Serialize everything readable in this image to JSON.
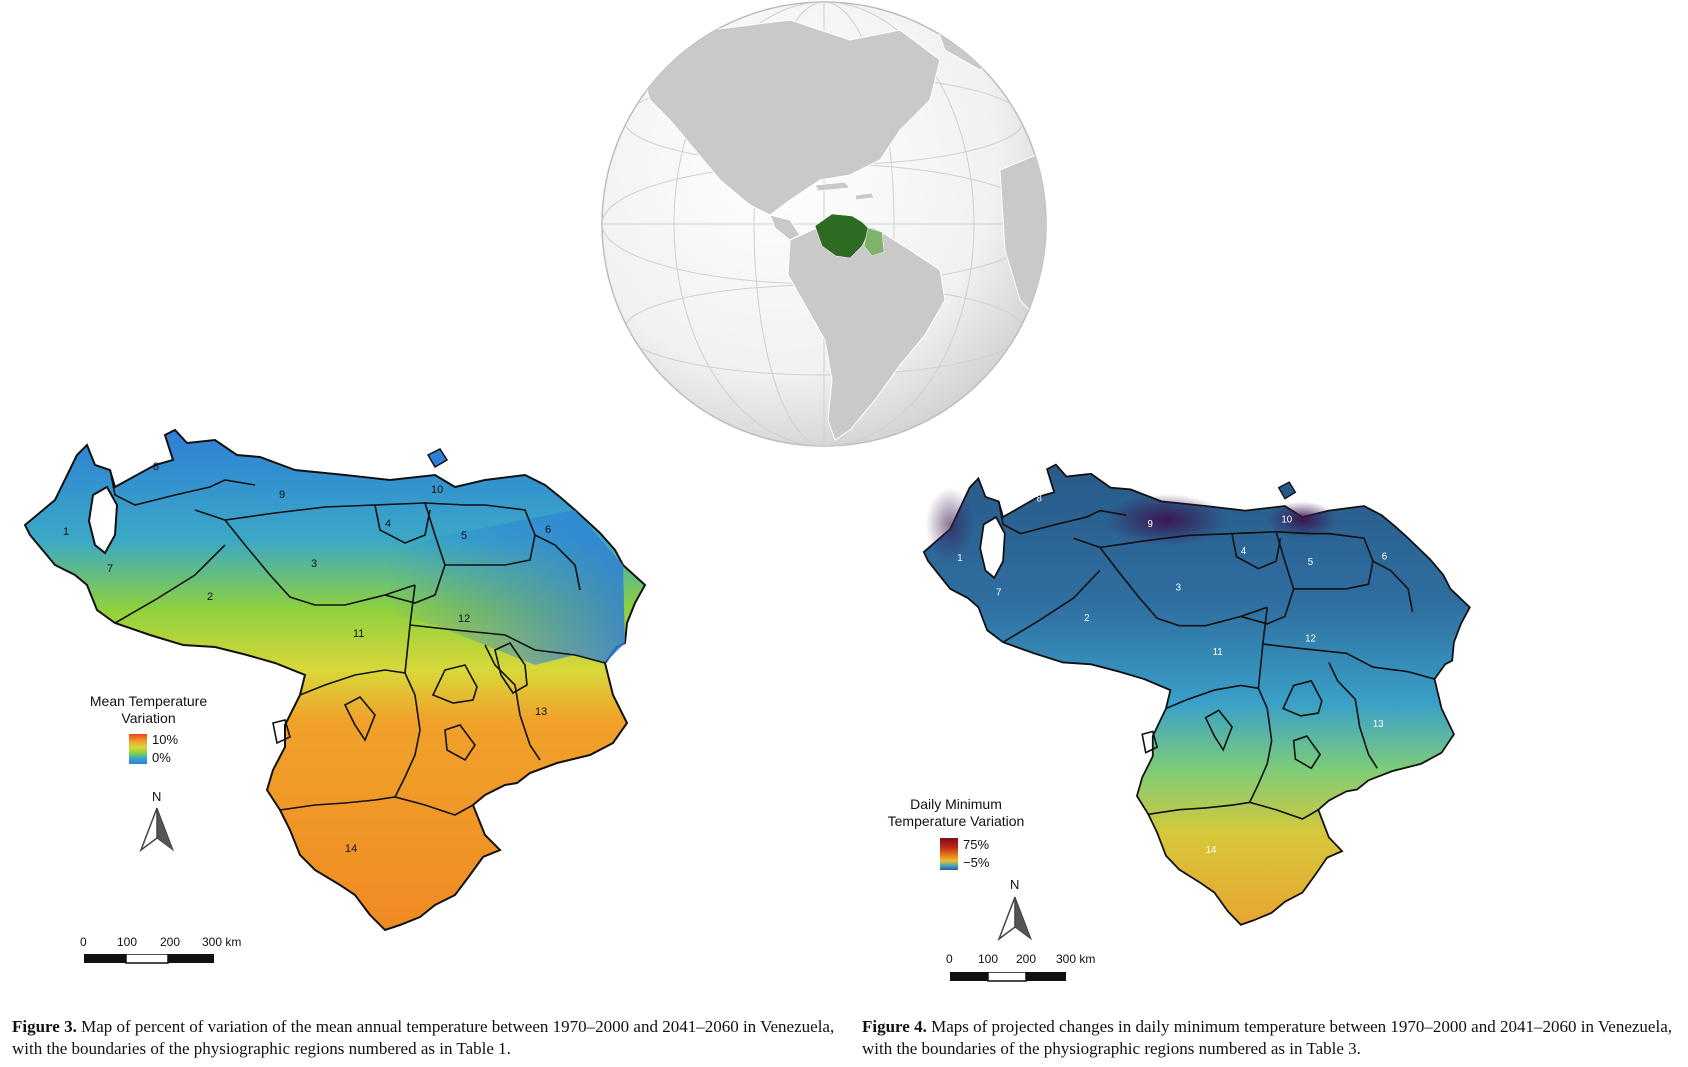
{
  "figure3": {
    "legend_title_line1": "Mean Temperature",
    "legend_title_line2": "Variation",
    "legend_max": "10%",
    "legend_min": "0%",
    "north_label": "N",
    "scale_labels": [
      "0",
      "100",
      "200",
      "300 km"
    ],
    "regions": [
      "1",
      "2",
      "3",
      "4",
      "5",
      "6",
      "7",
      "8",
      "9",
      "10",
      "11",
      "12",
      "13",
      "14"
    ],
    "caption_label": "Figure 3.",
    "caption_text": " Map of percent of variation of the mean annual temperature between 1970–2000 and 2041–2060 in Venezuela, with the boundaries of the physiographic regions numbered as in Table 1."
  },
  "figure4": {
    "legend_title_line1": "Daily Minimum",
    "legend_title_line2": "Temperature Variation",
    "legend_max": "75%",
    "legend_min": "−5%",
    "north_label": "N",
    "scale_labels": [
      "0",
      "100",
      "200",
      "300 km"
    ],
    "regions": [
      "1",
      "2",
      "3",
      "4",
      "5",
      "6",
      "7",
      "8",
      "9",
      "10",
      "11",
      "12",
      "13",
      "14"
    ],
    "caption_label": "Figure 4.",
    "caption_text": " Maps of projected changes in daily minimum temperature between 1970–2000 and 2041–2060 in Venezuela, with the boundaries of the physiographic regions numbered as in Table 3."
  },
  "colors": {
    "fig3_cool": "#2f7fd6",
    "fig3_mid": "#8fd13c",
    "fig3_warm": "#f08a24",
    "fig4_cool": "#2a5f8f",
    "fig4_mid": "#3aa0c8",
    "fig4_warm": "#e8b030",
    "fig4_dark": "#3a1850",
    "highlight_country": "#2e6b22"
  }
}
